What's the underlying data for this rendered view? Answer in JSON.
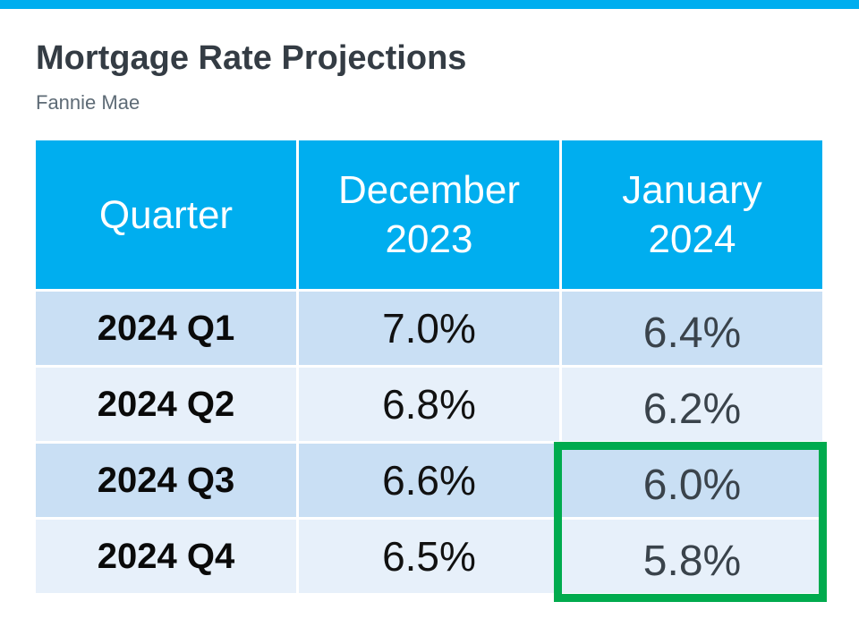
{
  "header": {
    "title": "Mortgage Rate Projections",
    "subtitle": "Fannie Mae"
  },
  "table": {
    "columns": [
      "Quarter",
      "December 2023",
      "January 2024"
    ],
    "rows": [
      {
        "quarter": "2024 Q1",
        "dec": "7.0%",
        "jan": "6.4%"
      },
      {
        "quarter": "2024 Q2",
        "dec": "6.8%",
        "jan": "6.2%"
      },
      {
        "quarter": "2024 Q3",
        "dec": "6.6%",
        "jan": "6.0%"
      },
      {
        "quarter": "2024 Q4",
        "dec": "6.5%",
        "jan": "5.8%"
      }
    ],
    "highlight_note": "Green outline highlights the January 2024 projections for 2024 Q3 (6.0%) and 2024 Q4 (5.8%)"
  },
  "chart_data": {
    "type": "table",
    "title": "Mortgage Rate Projections",
    "subtitle": "Fannie Mae",
    "columns": [
      "Quarter",
      "December 2023",
      "January 2024"
    ],
    "categories": [
      "2024 Q1",
      "2024 Q2",
      "2024 Q3",
      "2024 Q4"
    ],
    "series": [
      {
        "name": "December 2023",
        "values": [
          7.0,
          6.8,
          6.6,
          6.5
        ],
        "unit": "%"
      },
      {
        "name": "January 2024",
        "values": [
          6.4,
          6.2,
          6.0,
          5.8
        ],
        "unit": "%"
      }
    ],
    "annotations": [
      "Green rectangle outlines January 2024 values 6.0% (2024 Q3) and 5.8% (2024 Q4)"
    ]
  },
  "colors": {
    "accent-blue": "#00AEEF",
    "row-dark": "#C9DFF4",
    "row-light": "#E7F0FA",
    "highlight-green": "#00AB4E",
    "title-color": "#343C44",
    "subtitle-color": "#5E6B76",
    "jan-color": "#3A434B"
  }
}
